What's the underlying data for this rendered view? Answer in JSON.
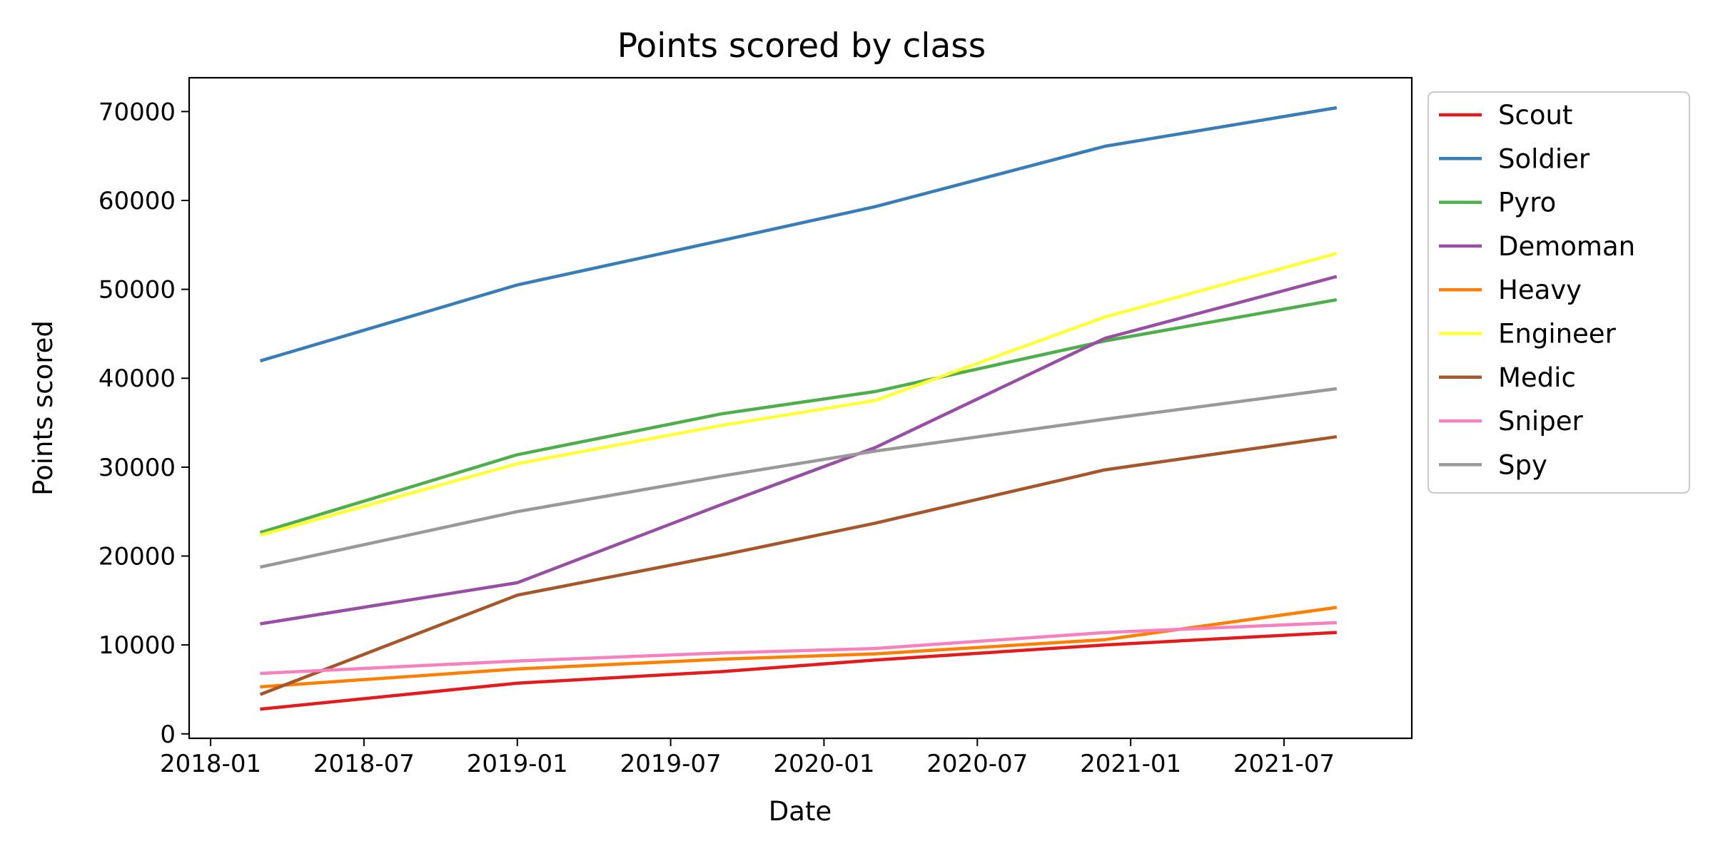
{
  "chart_data": {
    "type": "line",
    "title": "Points scored by class",
    "xlabel": "Date",
    "ylabel": "Points scored",
    "x_dates": [
      "2018-03",
      "2019-01",
      "2019-09",
      "2020-03",
      "2020-12",
      "2021-09"
    ],
    "x_tick_labels": [
      "2018-01",
      "2018-07",
      "2019-01",
      "2019-07",
      "2020-01",
      "2020-07",
      "2021-01",
      "2021-07"
    ],
    "y_ticks": [
      0,
      10000,
      20000,
      30000,
      40000,
      50000,
      60000,
      70000
    ],
    "y_tick_labels": [
      "0",
      "10000",
      "20000",
      "30000",
      "40000",
      "50000",
      "60000",
      "70000"
    ],
    "ylim": [
      -500,
      73800
    ],
    "grid": false,
    "legend_position": "outside right, top",
    "series": [
      {
        "name": "Scout",
        "color": "#e41a1c",
        "values": [
          2800,
          5700,
          7000,
          8300,
          10000,
          11400
        ]
      },
      {
        "name": "Soldier",
        "color": "#377eb8",
        "values": [
          42000,
          50500,
          55500,
          59300,
          66100,
          70400
        ]
      },
      {
        "name": "Pyro",
        "color": "#4daf4a",
        "values": [
          22700,
          31400,
          36000,
          38500,
          44200,
          48800
        ]
      },
      {
        "name": "Demoman",
        "color": "#984ea3",
        "values": [
          12400,
          17000,
          25800,
          32200,
          44500,
          51400
        ]
      },
      {
        "name": "Heavy",
        "color": "#ff7f00",
        "values": [
          5300,
          7300,
          8400,
          9000,
          10600,
          14200
        ]
      },
      {
        "name": "Engineer",
        "color": "#ffff33",
        "values": [
          22400,
          30400,
          34700,
          37500,
          46900,
          54000
        ]
      },
      {
        "name": "Medic",
        "color": "#a65628",
        "values": [
          4500,
          15600,
          20100,
          23700,
          29700,
          33400
        ]
      },
      {
        "name": "Sniper",
        "color": "#f781bf",
        "values": [
          6800,
          8200,
          9100,
          9600,
          11400,
          12500
        ]
      },
      {
        "name": "Spy",
        "color": "#999999",
        "values": [
          18800,
          25000,
          29000,
          31800,
          35400,
          38800
        ]
      }
    ]
  }
}
